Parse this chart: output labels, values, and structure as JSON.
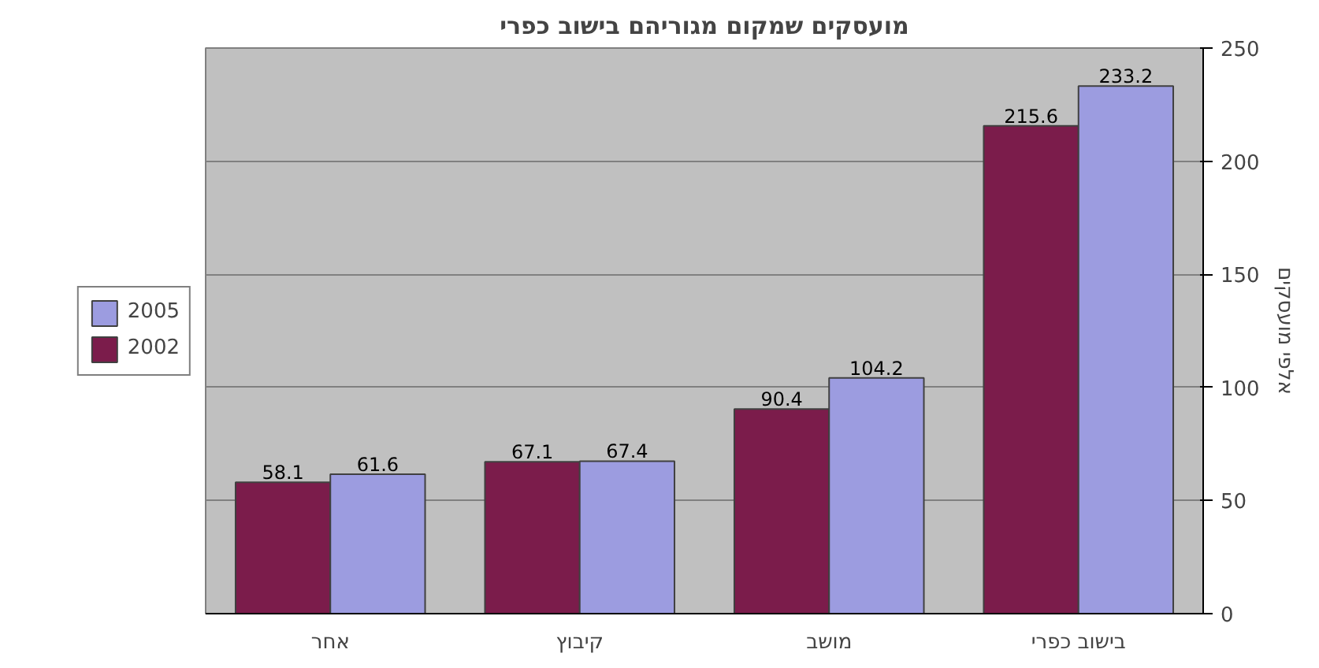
{
  "chart_data": {
    "type": "bar",
    "title": "מועסקים שמקום מגוריהם בישוב כפרי",
    "ylabel": "אלפי מועסקים",
    "categories": [
      "אחר",
      "קיבוץ",
      "מושב",
      "בישוב כפרי"
    ],
    "series": [
      {
        "name": "2002",
        "color": "#7b1c4b",
        "values": [
          58.1,
          67.1,
          90.4,
          215.6
        ]
      },
      {
        "name": "2005",
        "color": "#9c9ce0",
        "values": [
          61.6,
          67.4,
          104.2,
          233.2
        ]
      }
    ],
    "ylim": [
      0,
      250
    ],
    "yticks": [
      0,
      50,
      100,
      150,
      200,
      250
    ],
    "grid": "y",
    "legend": "left",
    "data_labels": true
  }
}
